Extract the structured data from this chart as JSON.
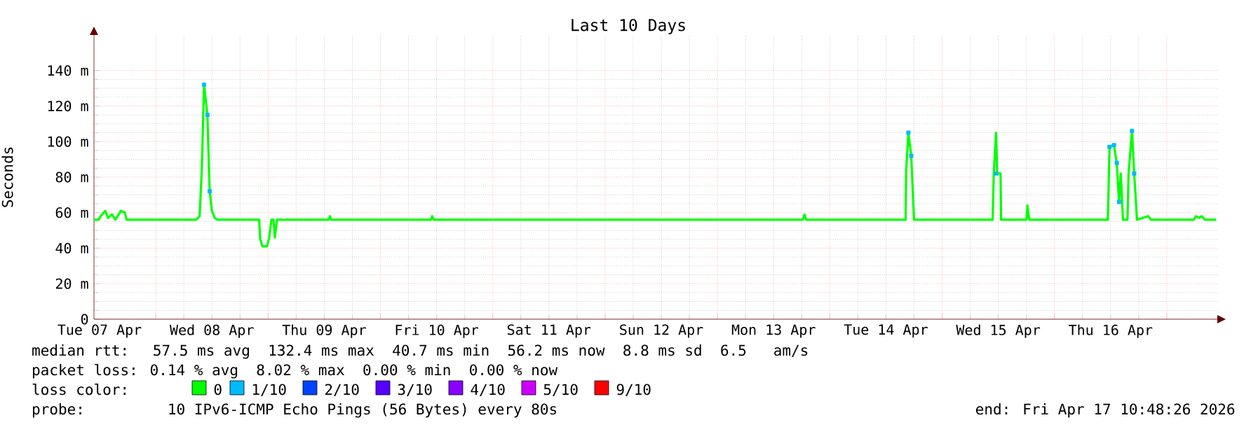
{
  "chart_data": {
    "type": "line",
    "title": "Last 10 Days",
    "ylabel": "Seconds",
    "xlim": [
      "2026-04-07T10:48",
      "2026-04-17T10:48"
    ],
    "ylim": [
      0,
      160
    ],
    "xticks": [
      {
        "value": "2026-04-07T12:00",
        "label": "Tue 07 Apr"
      },
      {
        "value": "2026-04-08T12:00",
        "label": "Wed 08 Apr"
      },
      {
        "value": "2026-04-09T12:00",
        "label": "Thu 09 Apr"
      },
      {
        "value": "2026-04-10T12:00",
        "label": "Fri 10 Apr"
      },
      {
        "value": "2026-04-11T12:00",
        "label": "Sat 11 Apr"
      },
      {
        "value": "2026-04-12T12:00",
        "label": "Sun 12 Apr"
      },
      {
        "value": "2026-04-13T12:00",
        "label": "Mon 13 Apr"
      },
      {
        "value": "2026-04-14T12:00",
        "label": "Tue 14 Apr"
      },
      {
        "value": "2026-04-15T12:00",
        "label": "Wed 15 Apr"
      },
      {
        "value": "2026-04-16T12:00",
        "label": "Thu 16 Apr"
      },
      {
        "value": "2026-04-08",
        "label": null
      },
      {
        "value": "2026-04-09",
        "label": null
      },
      {
        "value": "2026-04-10",
        "label": null
      },
      {
        "value": "2026-04-11",
        "label": null
      },
      {
        "value": "2026-04-12",
        "label": null
      },
      {
        "value": "2026-04-13",
        "label": null
      },
      {
        "value": "2026-04-14",
        "label": null
      },
      {
        "value": "2026-04-15",
        "label": null
      },
      {
        "value": "2026-04-16",
        "label": null
      },
      {
        "value": "2026-04-17",
        "label": null
      }
    ],
    "yticks": [
      {
        "value": 0,
        "label": "0"
      },
      {
        "value": 20,
        "label": "20 m"
      },
      {
        "value": 40,
        "label": "40 m"
      },
      {
        "value": 60,
        "label": "60 m"
      },
      {
        "value": 80,
        "label": "80 m"
      },
      {
        "value": 100,
        "label": "100 m"
      },
      {
        "value": 120,
        "label": "120 m"
      },
      {
        "value": 140,
        "label": "140 m"
      }
    ],
    "grid": true,
    "legend": "bottom",
    "marker": "none",
    "line_style": "solid",
    "series": [
      {
        "name": "0",
        "color": "#00ff00",
        "x": [
          "2026-04-07T10:48",
          "2026-04-07T11:46",
          "2026-04-07T12:14",
          "2026-04-07T13:12",
          "2026-04-07T13:48",
          "2026-04-07T14:38",
          "2026-04-07T15:22",
          "2026-04-07T16:34",
          "2026-04-07T17:24",
          "2026-04-07T17:46",
          "2026-04-08T08:38",
          "2026-04-08T09:22",
          "2026-04-08T09:50",
          "2026-04-08T10:19",
          "2026-04-08T11:02",
          "2026-04-08T11:31",
          "2026-04-08T12:00",
          "2026-04-08T12:36",
          "2026-04-08T13:12",
          "2026-04-08T22:05",
          "2026-04-08T22:19",
          "2026-04-08T22:48",
          "2026-04-08T23:46",
          "2026-04-09T00:14",
          "2026-04-09T00:43",
          "2026-04-09T01:12",
          "2026-04-09T01:26",
          "2026-04-09T01:55",
          "2026-04-09T12:58",
          "2026-04-09T13:12",
          "2026-04-09T13:26",
          "2026-04-10T10:48",
          "2026-04-10T11:02",
          "2026-04-10T11:24",
          "2026-04-13T18:14",
          "2026-04-13T18:36",
          "2026-04-13T18:58",
          "2026-04-14T16:12",
          "2026-04-14T16:19",
          "2026-04-14T16:48",
          "2026-04-14T17:24",
          "2026-04-14T18:00",
          "2026-04-15T10:48",
          "2026-04-15T11:02",
          "2026-04-15T11:31",
          "2026-04-15T11:46",
          "2026-04-15T12:29",
          "2026-04-15T12:36",
          "2026-04-15T18:00",
          "2026-04-15T18:14",
          "2026-04-15T18:36",
          "2026-04-16T11:24",
          "2026-04-16T11:31",
          "2026-04-16T11:46",
          "2026-04-16T12:43",
          "2026-04-16T13:19",
          "2026-04-16T13:48",
          "2026-04-16T14:10",
          "2026-04-16T14:38",
          "2026-04-16T15:36",
          "2026-04-16T15:50",
          "2026-04-16T16:34",
          "2026-04-16T17:02",
          "2026-04-16T17:38",
          "2026-04-16T20:02",
          "2026-04-16T20:38",
          "2026-04-17T05:46",
          "2026-04-17T06:14",
          "2026-04-17T06:58",
          "2026-04-17T07:26",
          "2026-04-17T08:10",
          "2026-04-17T10:34"
        ],
        "values": [
          56,
          56,
          58,
          61,
          57,
          59,
          56,
          61,
          60,
          56,
          56,
          58,
          84,
          132,
          115,
          72,
          61,
          57,
          56,
          56,
          45,
          41,
          41,
          46,
          56,
          56,
          46,
          56,
          56,
          58,
          56,
          56,
          58,
          56,
          56,
          59,
          56,
          56,
          84,
          105,
          92,
          56,
          56,
          82,
          105,
          82,
          82,
          56,
          56,
          64,
          56,
          56,
          69,
          97,
          98,
          88,
          66,
          82,
          56,
          56,
          82,
          106,
          82,
          56,
          58,
          56,
          56,
          58,
          57,
          58,
          56,
          56
        ]
      },
      {
        "name": "1/10",
        "color": "#00bbff",
        "type": "scatter",
        "marker": "square",
        "x": [
          "2026-04-08T10:19",
          "2026-04-08T11:02",
          "2026-04-08T11:31",
          "2026-04-14T16:48",
          "2026-04-14T17:24",
          "2026-04-15T11:31",
          "2026-04-16T11:46",
          "2026-04-16T12:43",
          "2026-04-16T13:19",
          "2026-04-16T13:48",
          "2026-04-16T16:34",
          "2026-04-16T17:02"
        ],
        "values": [
          132,
          115,
          72,
          105,
          92,
          82,
          97,
          98,
          88,
          66,
          106,
          82
        ]
      },
      {
        "name": "2/10",
        "color": "#0044ff",
        "type": "scatter"
      },
      {
        "name": "3/10",
        "color": "#5500ff",
        "type": "scatter"
      },
      {
        "name": "4/10",
        "color": "#8800ff",
        "type": "scatter"
      },
      {
        "name": "5/10",
        "color": "#cc00ff",
        "type": "scatter"
      },
      {
        "name": "9/10",
        "color": "#ff0000",
        "type": "scatter"
      }
    ],
    "annotations": [
      "median rtt:  57.5 ms avg  132.4 ms max  40.7 ms min  56.2 ms now  8.8 ms sd  6.5   am/s",
      "packet loss: 0.14 % avg  8.02 % max  0.00 % min  0.00 % now",
      "loss color:",
      "probe:       10 IPv6-ICMP Echo Pings (56 Bytes) every 80s",
      "end: Fri Apr 17 10:48:26 2026"
    ]
  }
}
